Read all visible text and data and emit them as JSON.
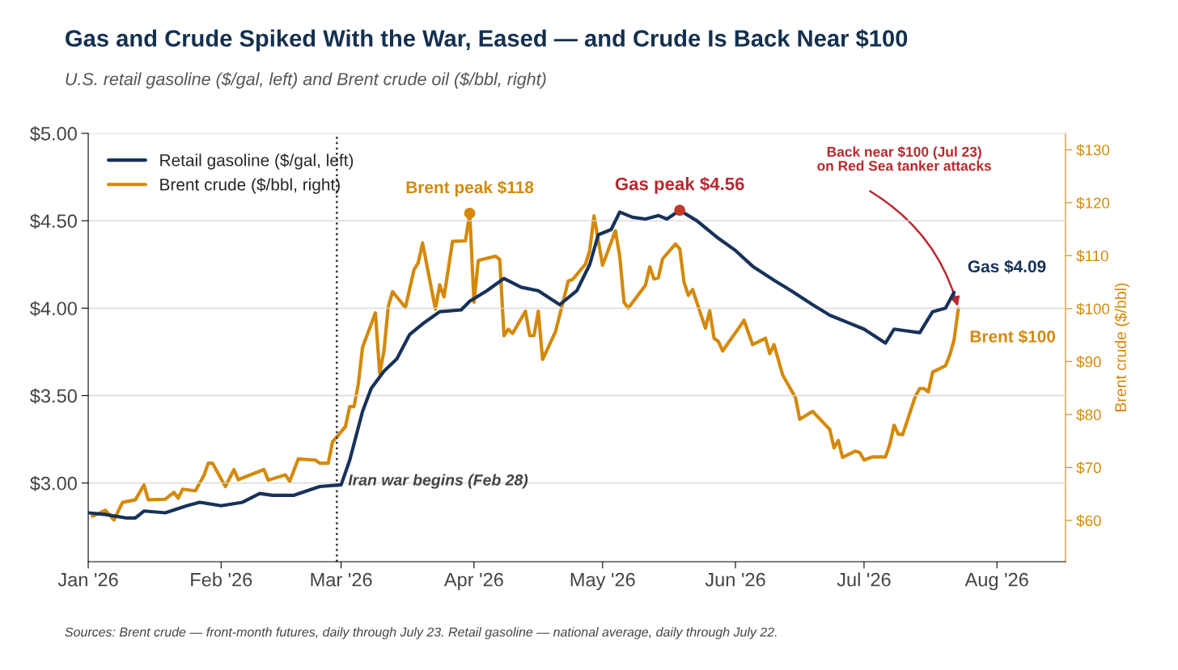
{
  "chart_data": {
    "type": "line",
    "title": "Gas and Crude Spiked With the War, Eased — and Crude Is Back Near $100",
    "subtitle": "U.S. retail gasoline ($/gal, left) and Brent crude oil ($/bbl, right)",
    "y2label": "Brent crude ($/bbl)",
    "series": [
      {
        "name": "Retail gasoline ($/gal, left)",
        "color": "#17325a",
        "x": [
          "2026-01-01",
          "2026-01-05",
          "2026-01-10",
          "2026-01-12",
          "2026-01-14",
          "2026-01-19",
          "2026-01-24",
          "2026-01-27",
          "2026-02-01",
          "2026-02-06",
          "2026-02-10",
          "2026-02-13",
          "2026-02-18",
          "2026-02-24",
          "2026-03-01",
          "2026-03-03",
          "2026-03-06",
          "2026-03-08",
          "2026-03-11",
          "2026-03-14",
          "2026-03-17",
          "2026-03-20",
          "2026-03-24",
          "2026-03-29",
          "2026-03-31",
          "2026-04-04",
          "2026-04-08",
          "2026-04-12",
          "2026-04-16",
          "2026-04-21",
          "2026-04-25",
          "2026-04-28",
          "2026-04-30",
          "2026-05-03",
          "2026-05-05",
          "2026-05-08",
          "2026-05-11",
          "2026-05-14",
          "2026-05-16",
          "2026-05-19",
          "2026-05-23",
          "2026-05-28",
          "2026-06-01",
          "2026-06-05",
          "2026-06-10",
          "2026-06-14",
          "2026-06-19",
          "2026-06-23",
          "2026-06-27",
          "2026-07-01",
          "2026-07-06",
          "2026-07-08",
          "2026-07-11",
          "2026-07-14",
          "2026-07-17",
          "2026-07-20",
          "2026-07-22"
        ],
        "values": [
          2.83,
          2.82,
          2.8,
          2.8,
          2.84,
          2.83,
          2.87,
          2.89,
          2.87,
          2.89,
          2.94,
          2.93,
          2.93,
          2.98,
          2.99,
          3.13,
          3.41,
          3.54,
          3.64,
          3.71,
          3.85,
          3.91,
          3.98,
          3.99,
          4.04,
          4.1,
          4.17,
          4.12,
          4.1,
          4.02,
          4.1,
          4.25,
          4.42,
          4.45,
          4.55,
          4.52,
          4.51,
          4.53,
          4.51,
          4.56,
          4.5,
          4.4,
          4.33,
          4.24,
          4.16,
          4.1,
          4.02,
          3.96,
          3.92,
          3.88,
          3.8,
          3.88,
          3.87,
          3.86,
          3.98,
          4.0,
          4.09
        ]
      },
      {
        "name": "Brent crude ($/bbl, right)",
        "color": "#d4890a",
        "axis": "y2",
        "x": [
          "2026-01-02",
          "2026-01-05",
          "2026-01-07",
          "2026-01-09",
          "2026-01-12",
          "2026-01-14",
          "2026-01-15",
          "2026-01-19",
          "2026-01-21",
          "2026-01-22",
          "2026-01-23",
          "2026-01-26",
          "2026-01-28",
          "2026-01-29",
          "2026-01-30",
          "2026-02-02",
          "2026-02-04",
          "2026-02-05",
          "2026-02-10",
          "2026-02-11",
          "2026-02-12",
          "2026-02-16",
          "2026-02-17",
          "2026-02-19",
          "2026-02-23",
          "2026-02-24",
          "2026-02-26",
          "2026-02-27",
          "2026-03-02",
          "2026-03-03",
          "2026-03-04",
          "2026-03-05",
          "2026-03-06",
          "2026-03-09",
          "2026-03-10",
          "2026-03-11",
          "2026-03-12",
          "2026-03-13",
          "2026-03-16",
          "2026-03-18",
          "2026-03-19",
          "2026-03-20",
          "2026-03-23",
          "2026-03-24",
          "2026-03-25",
          "2026-03-27",
          "2026-03-30",
          "2026-03-31",
          "2026-04-01",
          "2026-04-02",
          "2026-04-06",
          "2026-04-07",
          "2026-04-08",
          "2026-04-09",
          "2026-04-10",
          "2026-04-13",
          "2026-04-14",
          "2026-04-15",
          "2026-04-16",
          "2026-04-17",
          "2026-04-20",
          "2026-04-23",
          "2026-04-24",
          "2026-04-27",
          "2026-04-28",
          "2026-04-29",
          "2026-05-01",
          "2026-05-04",
          "2026-05-05",
          "2026-05-06",
          "2026-05-07",
          "2026-05-11",
          "2026-05-12",
          "2026-05-13",
          "2026-05-14",
          "2026-05-15",
          "2026-05-18",
          "2026-05-19",
          "2026-05-20",
          "2026-05-21",
          "2026-05-22",
          "2026-05-25",
          "2026-05-26",
          "2026-05-27",
          "2026-05-28",
          "2026-05-29",
          "2026-06-02",
          "2026-06-03",
          "2026-06-05",
          "2026-06-08",
          "2026-06-09",
          "2026-06-10",
          "2026-06-12",
          "2026-06-15",
          "2026-06-16",
          "2026-06-19",
          "2026-06-23",
          "2026-06-24",
          "2026-06-25",
          "2026-06-26",
          "2026-06-29",
          "2026-06-30",
          "2026-07-01",
          "2026-07-03",
          "2026-07-06",
          "2026-07-07",
          "2026-07-08",
          "2026-07-09",
          "2026-07-10",
          "2026-07-13",
          "2026-07-14",
          "2026-07-15",
          "2026-07-16",
          "2026-07-17",
          "2026-07-20",
          "2026-07-21",
          "2026-07-22",
          "2026-07-23"
        ],
        "values": [
          60.8,
          61.9,
          60.1,
          63.4,
          63.9,
          66.7,
          63.9,
          64.0,
          65.3,
          64.2,
          65.9,
          65.6,
          68.5,
          70.8,
          70.8,
          66.4,
          69.6,
          67.7,
          69.3,
          69.6,
          67.6,
          68.6,
          67.4,
          71.6,
          71.4,
          70.8,
          70.8,
          74.8,
          77.7,
          81.5,
          81.5,
          85.7,
          92.7,
          99.2,
          87.8,
          92.0,
          100.4,
          103.2,
          100.2,
          107.3,
          108.7,
          112.4,
          99.9,
          104.5,
          102.2,
          112.7,
          112.8,
          118,
          101.2,
          109.1,
          109.9,
          109.3,
          94.9,
          96.1,
          95.3,
          99.5,
          94.9,
          94.9,
          99.5,
          90.4,
          95.6,
          105.2,
          105.5,
          108.4,
          111.0,
          117.5,
          108.2,
          114.7,
          109.9,
          101.2,
          100.1,
          104.4,
          107.9,
          105.6,
          105.8,
          109.4,
          112.2,
          111.3,
          105.0,
          102.5,
          103.6,
          96.3,
          99.6,
          94.4,
          93.8,
          92.0,
          96.6,
          97.8,
          93.2,
          94.4,
          91.5,
          93.2,
          87.5,
          83.2,
          79.1,
          80.6,
          77.2,
          73.7,
          75.1,
          71.9,
          73.1,
          72.8,
          71.4,
          72.0,
          72.0,
          74.3,
          78.0,
          76.3,
          76.2,
          83.5,
          84.9,
          84.9,
          84.3,
          88.0,
          89.2,
          91.2,
          94.1,
          100
        ]
      },
      {
        "type": "scatter",
        "marker": "circle",
        "color": "#c0392b",
        "x": [
          "2026-05-19"
        ],
        "values": [
          4.56
        ]
      },
      {
        "type": "scatter",
        "marker": "circle",
        "color": "#d4890a",
        "axis": "y2",
        "x": [
          "2026-03-31"
        ],
        "values": [
          118
        ]
      }
    ],
    "xlim": [
      "2026-01-01",
      "2026-08-17"
    ],
    "xticks": [
      {
        "value": "2026-01-01",
        "label": "Jan '26"
      },
      {
        "value": "2026-02-01",
        "label": "Feb '26"
      },
      {
        "value": "2026-03-01",
        "label": "Mar '26"
      },
      {
        "value": "2026-04-01",
        "label": "Apr '26"
      },
      {
        "value": "2026-05-01",
        "label": "May '26"
      },
      {
        "value": "2026-06-01",
        "label": "Jun '26"
      },
      {
        "value": "2026-07-01",
        "label": "Jul '26"
      },
      {
        "value": "2026-08-01",
        "label": "Aug '26"
      }
    ],
    "ylim": [
      2.55,
      5.0
    ],
    "yticks": [
      {
        "value": 3.0,
        "label": "$3.00"
      },
      {
        "value": 3.5,
        "label": "$3.50"
      },
      {
        "value": 4.0,
        "label": "$4.00"
      },
      {
        "value": 4.5,
        "label": "$4.50"
      },
      {
        "value": 5.0,
        "label": "$5.00"
      }
    ],
    "y2lim": [
      52.2,
      133.1
    ],
    "y2ticks": [
      {
        "value": 60,
        "label": "$60"
      },
      {
        "value": 70,
        "label": "$70"
      },
      {
        "value": 80,
        "label": "$80"
      },
      {
        "value": 90,
        "label": "$90"
      },
      {
        "value": 100,
        "label": "$100"
      },
      {
        "value": 110,
        "label": "$110"
      },
      {
        "value": 120,
        "label": "$120"
      },
      {
        "value": 130,
        "label": "$130"
      }
    ],
    "ref_lines": [
      {
        "axis": "x",
        "value": "2026-02-28",
        "label": "Iran war begins (Feb 28)",
        "color": "#333333",
        "line_style": "dotted"
      }
    ],
    "annotations": [
      {
        "text": "Gas peak $4.56",
        "x": "2026-05-19",
        "y": 4.56
      },
      {
        "text": "Gas $4.09",
        "x": "2026-07-22",
        "y": 4.09
      },
      "Brent peak $118",
      "Brent $100",
      "Back near $100 (Jul 23)\non Red Sea tanker attacks",
      "Sources: Brent crude — front-month futures, daily through July 23. Retail gasoline — national average, daily through July 22."
    ],
    "grid": "y",
    "legend": "top left",
    "line_style": "solid",
    "marker": "none"
  }
}
